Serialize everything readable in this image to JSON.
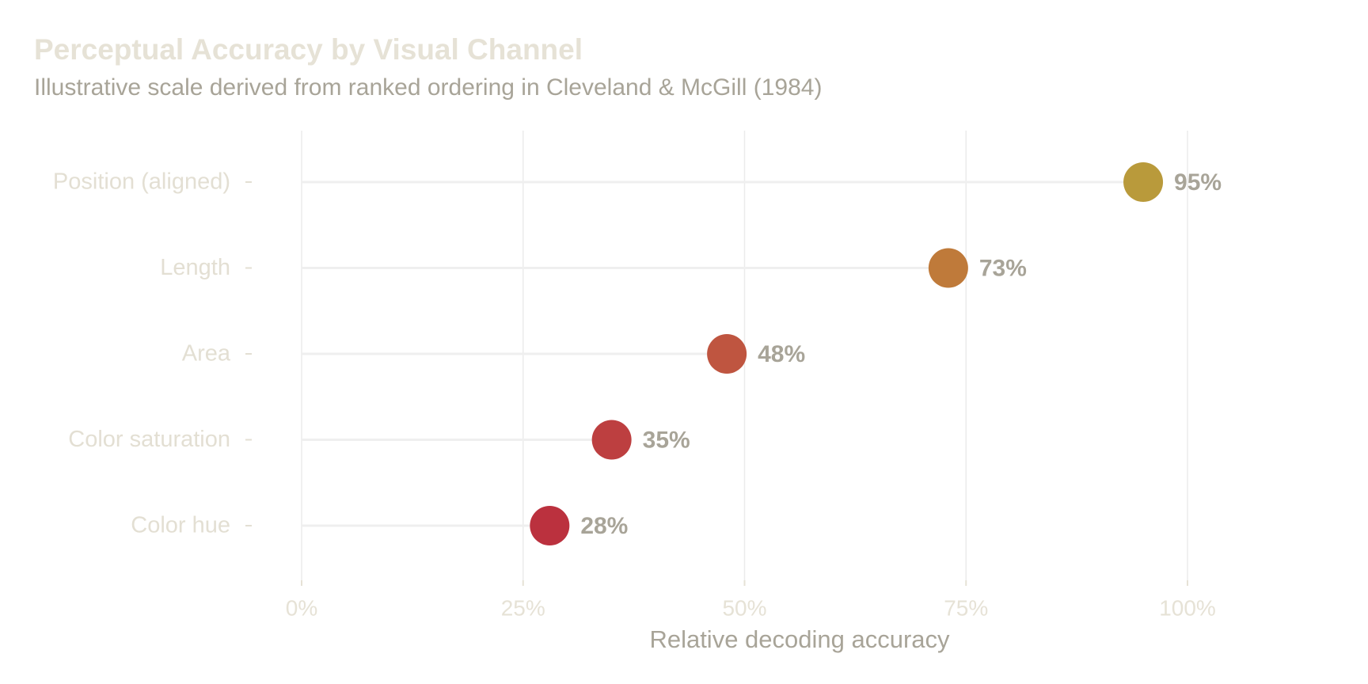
{
  "chart_data": {
    "type": "dot",
    "title": "Perceptual Accuracy by Visual Channel",
    "subtitle": "Illustrative scale derived from ranked ordering in Cleveland & McGill (1984)",
    "x_label": "Relative decoding accuracy",
    "categories": [
      "Position (aligned)",
      "Length",
      "Area",
      "Color saturation",
      "Color hue"
    ],
    "values": [
      95,
      73,
      48,
      35,
      28
    ],
    "value_labels": [
      "95%",
      "73%",
      "48%",
      "35%",
      "28%"
    ],
    "colors": [
      "#b99a3b",
      "#bf7a3a",
      "#bf5540",
      "#bd3f40",
      "#bb313e"
    ],
    "xlim": [
      0,
      100
    ],
    "xticks": [
      {
        "value": 0,
        "label": "0%"
      },
      {
        "value": 25,
        "label": "25%"
      },
      {
        "value": 50,
        "label": "50%"
      },
      {
        "value": 75,
        "label": "75%"
      },
      {
        "value": 100,
        "label": "100%"
      }
    ],
    "grid": true
  }
}
